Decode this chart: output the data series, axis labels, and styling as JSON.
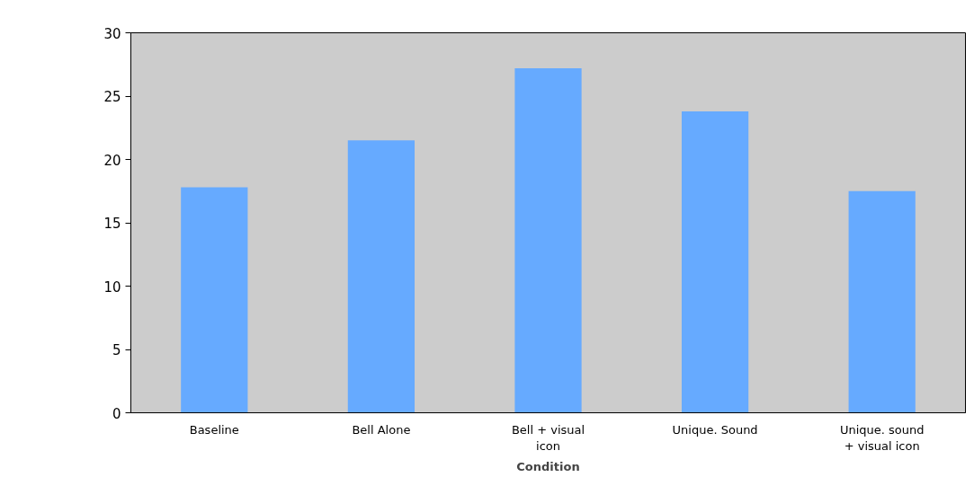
{
  "chart_data": {
    "type": "bar",
    "xlabel": "Condition",
    "categories": [
      "Baseline",
      "Bell Alone",
      "Bell + visual icon",
      "Unique. Sound",
      "Unique. sound + visual icon"
    ],
    "values": [
      17.8,
      21.5,
      27.2,
      23.8,
      17.5
    ],
    "color": "#66aaff",
    "ylim": [
      0,
      30
    ],
    "yticks": [
      0,
      5,
      10,
      15,
      20,
      25,
      30
    ]
  }
}
